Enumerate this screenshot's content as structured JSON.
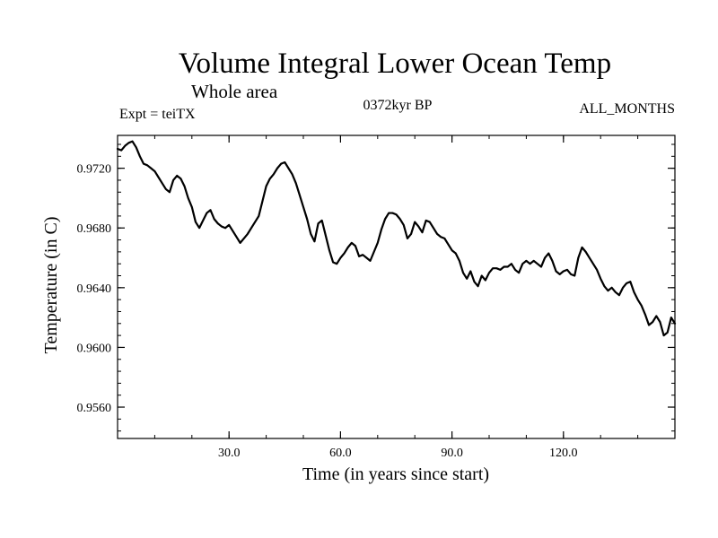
{
  "chart_data": {
    "type": "line",
    "title": "Volume Integral Lower Ocean Temp",
    "subtitle": "Whole area",
    "experiment": "Expt = teiTX",
    "period": "0372kyr BP",
    "months": "ALL_MONTHS",
    "xlabel": "Time (in years since start)",
    "ylabel": "Temperature (in C)",
    "xlim": [
      0,
      150
    ],
    "ylim": [
      0.9539,
      0.9742
    ],
    "x_tick_labels": [
      "30.0",
      "60.0",
      "90.0",
      "120.0"
    ],
    "x_tick_values": [
      30,
      60,
      90,
      120
    ],
    "x_minor_step": 10,
    "y_tick_labels": [
      "0.9720",
      "0.9680",
      "0.9640",
      "0.9600",
      "0.9560"
    ],
    "y_tick_values": [
      0.972,
      0.968,
      0.964,
      0.96,
      0.956
    ],
    "y_minor_step": 0.0008,
    "grid": false,
    "legend": "none",
    "series": [
      {
        "name": "Volume integral lower ocean temperature",
        "color": "#000000",
        "x": [
          0,
          1,
          2,
          3,
          4,
          5,
          6,
          7,
          8,
          9,
          10,
          11,
          12,
          13,
          14,
          15,
          16,
          17,
          18,
          19,
          20,
          21,
          22,
          23,
          24,
          25,
          26,
          27,
          28,
          29,
          30,
          31,
          32,
          33,
          34,
          35,
          36,
          37,
          38,
          39,
          40,
          41,
          42,
          43,
          44,
          45,
          46,
          47,
          48,
          49,
          50,
          51,
          52,
          53,
          54,
          55,
          56,
          57,
          58,
          59,
          60,
          61,
          62,
          63,
          64,
          65,
          66,
          67,
          68,
          69,
          70,
          71,
          72,
          73,
          74,
          75,
          76,
          77,
          78,
          79,
          80,
          81,
          82,
          83,
          84,
          85,
          86,
          87,
          88,
          89,
          90,
          91,
          92,
          93,
          94,
          95,
          96,
          97,
          98,
          99,
          100,
          101,
          102,
          103,
          104,
          105,
          106,
          107,
          108,
          109,
          110,
          111,
          112,
          113,
          114,
          115,
          116,
          117,
          118,
          119,
          120,
          121,
          122,
          123,
          124,
          125,
          126,
          127,
          128,
          129,
          130,
          131,
          132,
          133,
          134,
          135,
          136,
          137,
          138,
          139,
          140,
          141,
          142,
          143,
          144,
          145,
          146,
          147,
          148,
          149,
          150
        ],
        "values": [
          0.9733,
          0.9732,
          0.9735,
          0.9737,
          0.9738,
          0.9734,
          0.9728,
          0.9723,
          0.9722,
          0.972,
          0.9718,
          0.9714,
          0.971,
          0.9706,
          0.9704,
          0.9712,
          0.9715,
          0.9713,
          0.9708,
          0.97,
          0.9694,
          0.9684,
          0.968,
          0.9685,
          0.969,
          0.9692,
          0.9686,
          0.9683,
          0.9681,
          0.968,
          0.9682,
          0.9678,
          0.9674,
          0.967,
          0.9673,
          0.9676,
          0.968,
          0.9684,
          0.9688,
          0.9698,
          0.9708,
          0.9713,
          0.9716,
          0.972,
          0.9723,
          0.9724,
          0.972,
          0.9716,
          0.971,
          0.9702,
          0.9694,
          0.9686,
          0.9676,
          0.9671,
          0.9683,
          0.9685,
          0.9675,
          0.9665,
          0.9657,
          0.9656,
          0.966,
          0.9663,
          0.9667,
          0.967,
          0.9668,
          0.9661,
          0.9662,
          0.966,
          0.9658,
          0.9664,
          0.967,
          0.9679,
          0.9686,
          0.969,
          0.969,
          0.9689,
          0.9686,
          0.9682,
          0.9673,
          0.9676,
          0.9684,
          0.9681,
          0.9677,
          0.9685,
          0.9684,
          0.968,
          0.9676,
          0.9674,
          0.9673,
          0.9669,
          0.9665,
          0.9663,
          0.9658,
          0.965,
          0.9646,
          0.9651,
          0.9644,
          0.9641,
          0.9648,
          0.9645,
          0.965,
          0.9653,
          0.9653,
          0.9652,
          0.9654,
          0.9654,
          0.9656,
          0.9652,
          0.965,
          0.9656,
          0.9658,
          0.9656,
          0.9658,
          0.9656,
          0.9654,
          0.966,
          0.9663,
          0.9658,
          0.9651,
          0.9649,
          0.9651,
          0.9652,
          0.9649,
          0.9648,
          0.966,
          0.9667,
          0.9664,
          0.966,
          0.9656,
          0.9652,
          0.9646,
          0.9641,
          0.9638,
          0.964,
          0.9637,
          0.9635,
          0.964,
          0.9643,
          0.9644,
          0.9637,
          0.9632,
          0.9628,
          0.9622,
          0.9615,
          0.9617,
          0.9621,
          0.9617,
          0.9608,
          0.961,
          0.962,
          0.9616
        ]
      }
    ]
  }
}
